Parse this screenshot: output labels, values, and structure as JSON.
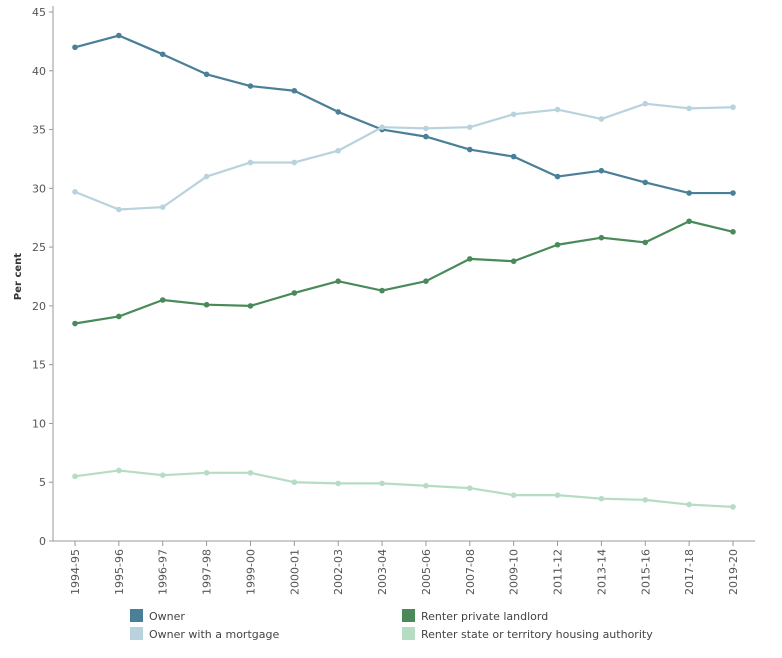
{
  "chart_data": {
    "type": "line",
    "title": "",
    "xlabel": "",
    "ylabel": "Per cent",
    "ylim": [
      0,
      45
    ],
    "yticks": [
      0,
      5,
      10,
      15,
      20,
      25,
      30,
      35,
      40,
      45
    ],
    "grid": false,
    "legend_position": "bottom",
    "categories": [
      "1994-95",
      "1995-96",
      "1996-97",
      "1997-98",
      "1999-00",
      "2000-01",
      "2002-03",
      "2003-04",
      "2005-06",
      "2007-08",
      "2009-10",
      "2011-12",
      "2013-14",
      "2015-16",
      "2017-18",
      "2019-20"
    ],
    "series": [
      {
        "name": "Owner",
        "color": "#4a7f98",
        "values": [
          42.0,
          43.0,
          41.4,
          39.7,
          38.7,
          38.3,
          36.5,
          35.0,
          34.4,
          33.3,
          32.7,
          31.0,
          31.5,
          30.5,
          29.6,
          29.6
        ]
      },
      {
        "name": "Owner with a mortgage",
        "color": "#b9d3de",
        "values": [
          29.7,
          28.2,
          28.4,
          31.0,
          32.2,
          32.2,
          33.2,
          35.2,
          35.1,
          35.2,
          36.3,
          36.7,
          35.9,
          37.2,
          36.8,
          36.9
        ]
      },
      {
        "name": "Renter private landlord",
        "color": "#4a8a5a",
        "values": [
          18.5,
          19.1,
          20.5,
          20.1,
          20.0,
          21.1,
          22.1,
          21.3,
          22.1,
          24.0,
          23.8,
          25.2,
          25.8,
          25.4,
          27.2,
          26.3
        ]
      },
      {
        "name": "Renter state or territory housing authority",
        "color": "#b6dcc3",
        "values": [
          5.5,
          6.0,
          5.6,
          5.8,
          5.8,
          5.0,
          4.9,
          4.9,
          4.7,
          4.5,
          3.9,
          3.9,
          3.6,
          3.5,
          3.1,
          2.9
        ]
      }
    ]
  }
}
